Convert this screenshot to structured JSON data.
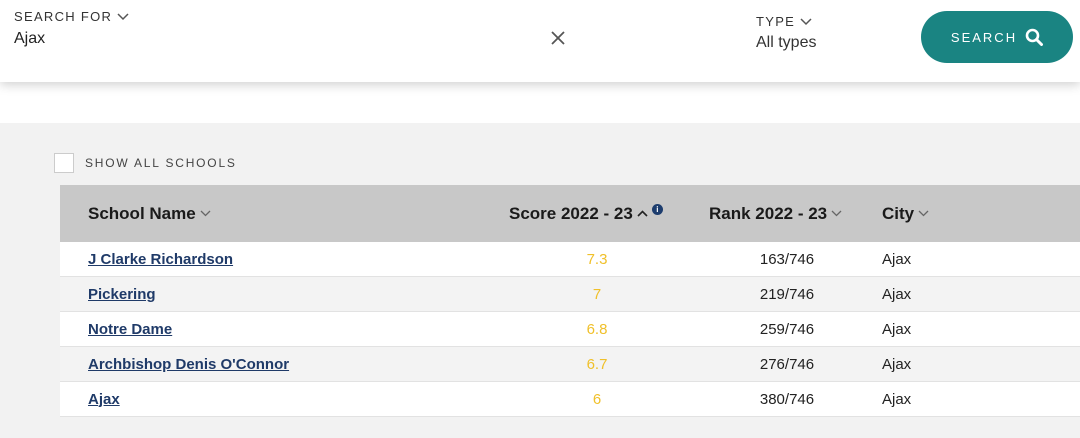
{
  "search": {
    "search_for_label": "SEARCH FOR",
    "query": "Ajax",
    "type_label": "TYPE",
    "type_value": "All types",
    "button_label": "SEARCH"
  },
  "filters": {
    "show_all_label": "SHOW ALL SCHOOLS",
    "show_all_checked": false
  },
  "table": {
    "headers": {
      "name": "School Name",
      "score": "Score 2022 - 23",
      "rank": "Rank 2022 - 23",
      "city": "City"
    },
    "rows": [
      {
        "name": "J Clarke Richardson",
        "score": "7.3",
        "rank": "163/746",
        "city": "Ajax"
      },
      {
        "name": "Pickering",
        "score": "7",
        "rank": "219/746",
        "city": "Ajax"
      },
      {
        "name": "Notre Dame",
        "score": "6.8",
        "rank": "259/746",
        "city": "Ajax"
      },
      {
        "name": "Archbishop Denis O'Connor",
        "score": "6.7",
        "rank": "276/746",
        "city": "Ajax"
      },
      {
        "name": "Ajax",
        "score": "6",
        "rank": "380/746",
        "city": "Ajax"
      }
    ]
  },
  "colors": {
    "accent": "#1a8482",
    "link": "#1f3a68",
    "score": "#f0c02a",
    "header_bg": "#c8c8c8"
  },
  "icons": [
    "chevron-down-icon",
    "close-icon",
    "search-icon",
    "sort-up-icon",
    "info-icon"
  ]
}
